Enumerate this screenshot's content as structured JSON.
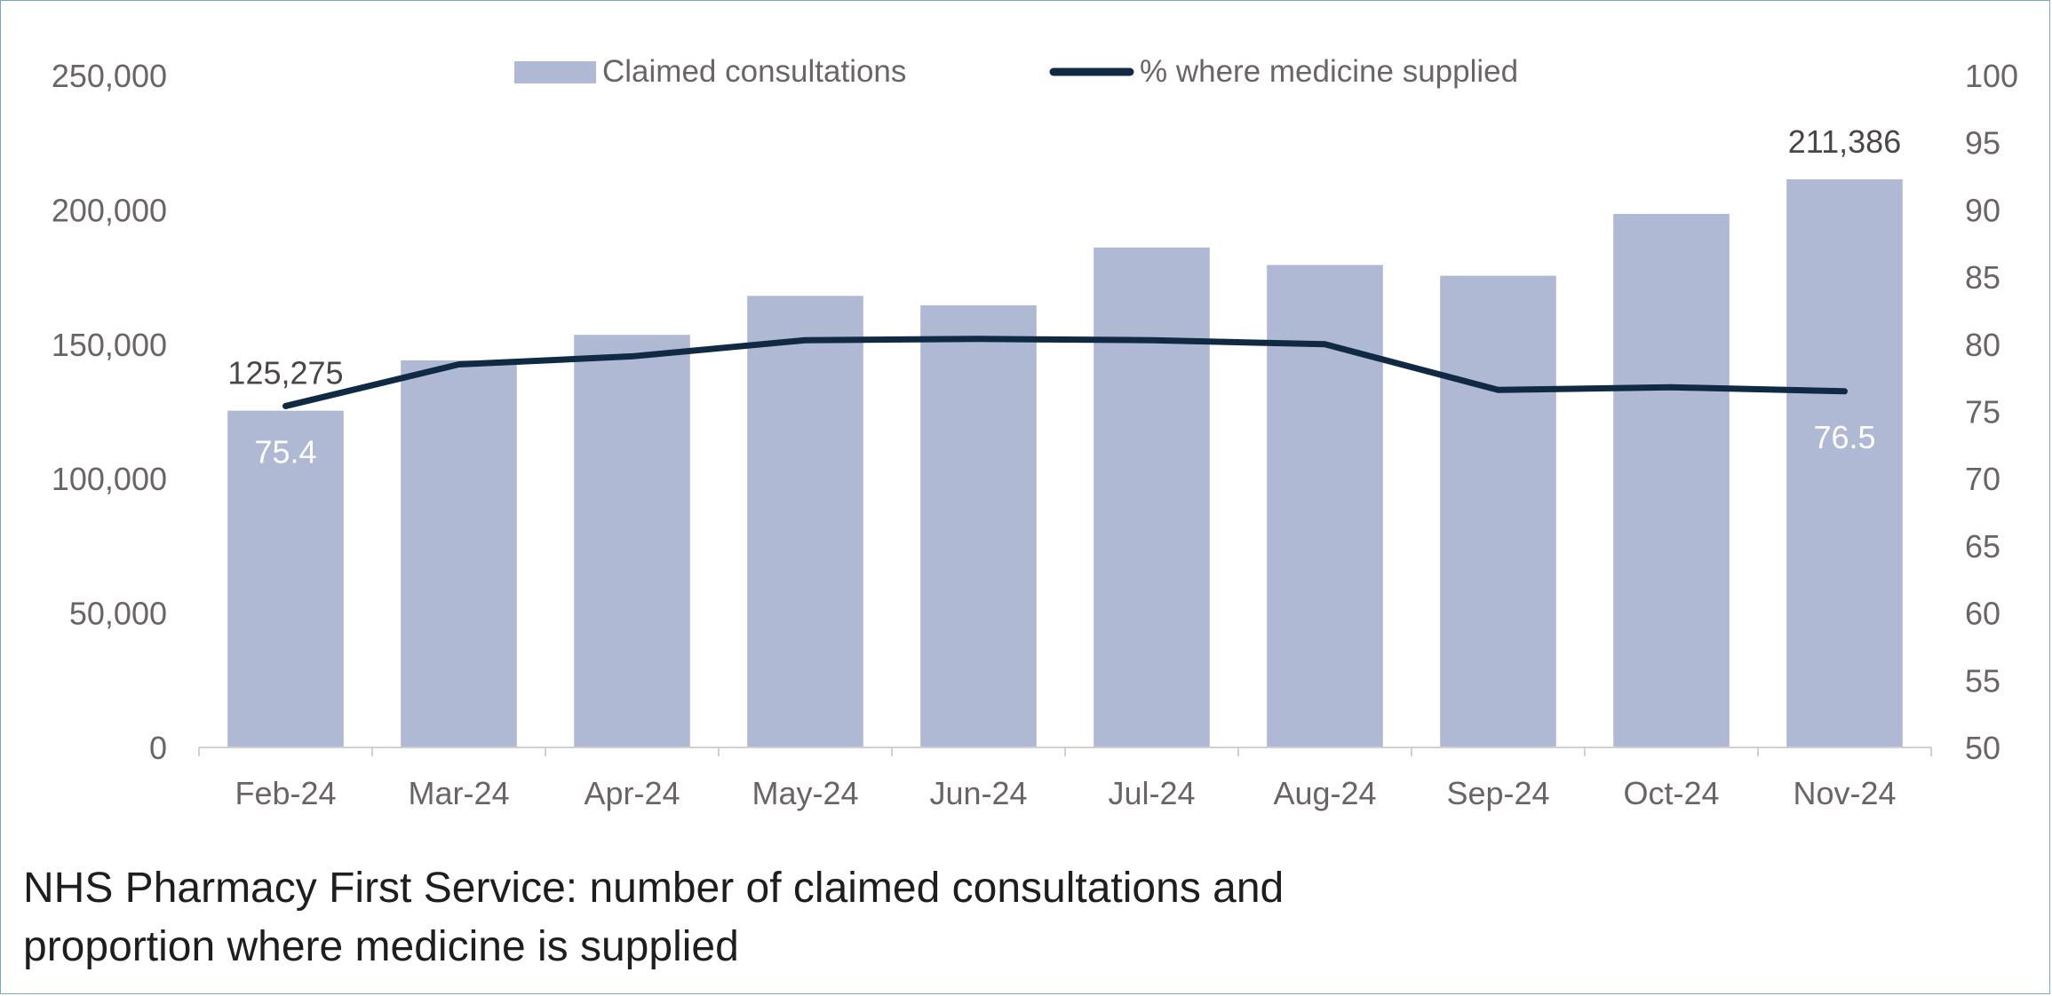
{
  "caption_line1": "NHS Pharmacy First Service: number of claimed consultations and",
  "caption_line2": "proportion where medicine is supplied",
  "chart_data": {
    "type": "bar",
    "categories": [
      "Feb-24",
      "Mar-24",
      "Apr-24",
      "May-24",
      "Jun-24",
      "Jul-24",
      "Aug-24",
      "Sep-24",
      "Oct-24",
      "Nov-24"
    ],
    "series": [
      {
        "name": "Claimed consultations",
        "type": "bar",
        "axis": "left",
        "color": "#b0b9d4",
        "values": [
          125275,
          144000,
          153500,
          168000,
          164500,
          186000,
          179500,
          175500,
          198500,
          211386
        ]
      },
      {
        "name": "% where medicine supplied",
        "type": "line",
        "axis": "right",
        "color": "#102a43",
        "values": [
          75.4,
          78.5,
          79.1,
          80.3,
          80.4,
          80.3,
          80.0,
          76.6,
          76.8,
          76.5
        ]
      }
    ],
    "y_left": {
      "ylim": [
        0,
        250000
      ],
      "ticks": [
        "0",
        "50,000",
        "100,000",
        "150,000",
        "200,000",
        "250,000"
      ]
    },
    "y_right": {
      "ylim": [
        50,
        100
      ],
      "ticks": [
        "50",
        "55",
        "60",
        "65",
        "70",
        "75",
        "80",
        "85",
        "90",
        "95",
        "100"
      ]
    },
    "data_labels": [
      {
        "series": 0,
        "index": 0,
        "text": "125,275"
      },
      {
        "series": 0,
        "index": 9,
        "text": "211,386"
      },
      {
        "series": 1,
        "index": 0,
        "text": "75.4"
      },
      {
        "series": 1,
        "index": 9,
        "text": "76.5"
      }
    ],
    "legend": "top",
    "grid": false
  }
}
